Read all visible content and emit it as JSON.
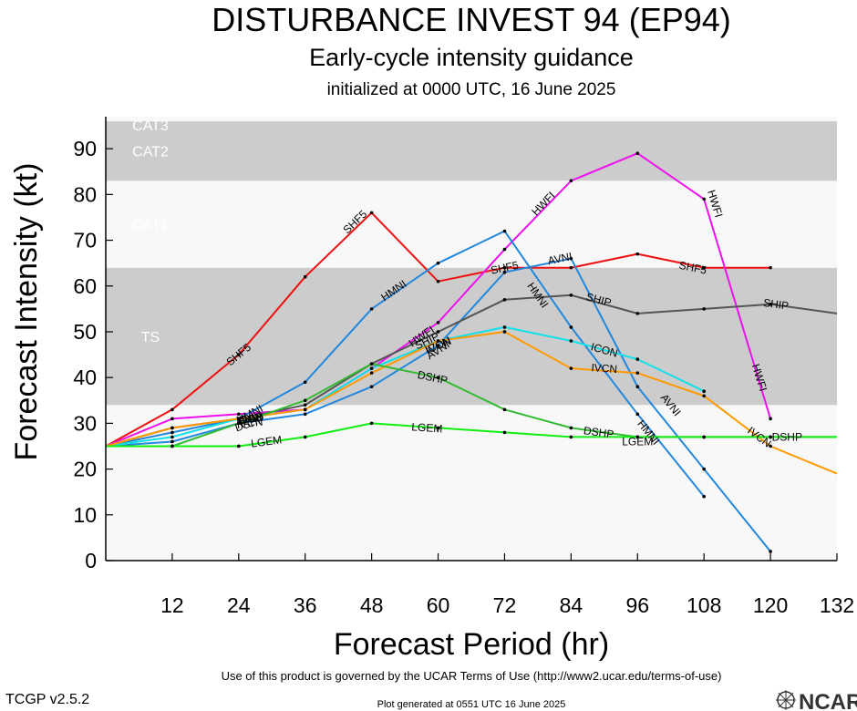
{
  "header": {
    "title": "DISTURBANCE INVEST 94 (EP94)",
    "subtitle": "Early-cycle intensity guidance",
    "initialized": "initialized at 0000 UTC, 16 June 2025"
  },
  "footer": {
    "terms": "Use of this product is governed by the UCAR Terms of Use (http://www2.ucar.edu/terms-of-use)",
    "generated": "Plot generated at 0551 UTC   16 June 2025",
    "version": "TCGP v2.5.2",
    "logo_text": "NCAR"
  },
  "chart_data": {
    "type": "line",
    "xlabel": "Forecast Period (hr)",
    "ylabel": "Forecast Intensity (kt)",
    "xlim": [
      0,
      132
    ],
    "ylim": [
      0,
      97
    ],
    "xticks": [
      12,
      24,
      36,
      48,
      60,
      72,
      84,
      96,
      108,
      120,
      132
    ],
    "yticks": [
      0,
      10,
      20,
      30,
      40,
      50,
      60,
      70,
      80,
      90
    ],
    "grid": false,
    "bands": [
      {
        "label": "TS",
        "from": 34,
        "to": 64,
        "color": "#cccccc"
      },
      {
        "label": "CAT1",
        "from": 64,
        "to": 83,
        "color": "#f8f8f8"
      },
      {
        "label": "CAT2",
        "from": 83,
        "to": 96,
        "color": "#cccccc"
      },
      {
        "label": "CAT3",
        "from": 96,
        "to": 113,
        "color": "#f8f8f8"
      }
    ],
    "series": [
      {
        "name": "SHF5",
        "color": "#ee1111",
        "x": [
          0,
          12,
          24,
          36,
          48,
          60,
          72,
          84,
          96,
          108,
          120
        ],
        "y": [
          25,
          33,
          45,
          62,
          76,
          61,
          64,
          64,
          67,
          64,
          64
        ],
        "labels": [
          {
            "x": 24,
            "y": 45
          },
          {
            "x": 45,
            "y": 74
          },
          {
            "x": 72,
            "y": 64
          },
          {
            "x": 106,
            "y": 64
          }
        ]
      },
      {
        "name": "HWFI",
        "color": "#ee11ee",
        "x": [
          0,
          12,
          24,
          36,
          48,
          60,
          72,
          84,
          96,
          108,
          120
        ],
        "y": [
          25,
          31,
          32,
          33,
          42,
          52,
          68,
          83,
          89,
          79,
          31
        ],
        "labels": [
          {
            "x": 57,
            "y": 49
          },
          {
            "x": 79,
            "y": 78
          },
          {
            "x": 110,
            "y": 78
          },
          {
            "x": 118,
            "y": 40
          }
        ]
      },
      {
        "name": "HMNI",
        "color": "#2288dd",
        "x": [
          0,
          12,
          24,
          36,
          48,
          60,
          72,
          84,
          96,
          108
        ],
        "y": [
          25,
          28,
          31,
          39,
          55,
          65,
          72,
          51,
          32,
          14
        ],
        "labels": [
          {
            "x": 26,
            "y": 32
          },
          {
            "x": 52,
            "y": 59
          },
          {
            "x": 78,
            "y": 58
          },
          {
            "x": 98,
            "y": 28
          }
        ]
      },
      {
        "name": "AVNI",
        "color": "#2288dd",
        "x": [
          0,
          12,
          24,
          36,
          48,
          60,
          72,
          84,
          96,
          108,
          120
        ],
        "y": [
          25,
          26,
          30,
          32,
          38,
          47,
          63,
          66,
          38,
          20,
          2
        ],
        "labels": [
          {
            "x": 26,
            "y": 31
          },
          {
            "x": 60,
            "y": 46
          },
          {
            "x": 82,
            "y": 66
          },
          {
            "x": 102,
            "y": 34
          }
        ]
      },
      {
        "name": "SHIP",
        "color": "#555555",
        "x": [
          0,
          12,
          24,
          36,
          48,
          60,
          72,
          84,
          96,
          108,
          120,
          132
        ],
        "y": [
          25,
          29,
          31,
          34,
          43,
          50,
          57,
          58,
          54,
          55,
          56,
          54
        ],
        "labels": [
          {
            "x": 26,
            "y": 31
          },
          {
            "x": 58,
            "y": 48
          },
          {
            "x": 89,
            "y": 57
          },
          {
            "x": 121,
            "y": 56
          }
        ]
      },
      {
        "name": "ICON",
        "color": "#11e0e8",
        "x": [
          0,
          12,
          24,
          36,
          48,
          60,
          72,
          84,
          96,
          108
        ],
        "y": [
          25,
          27,
          31,
          33,
          42,
          48,
          51,
          48,
          44,
          37
        ],
        "labels": [
          {
            "x": 26,
            "y": 31
          },
          {
            "x": 60,
            "y": 47
          },
          {
            "x": 90,
            "y": 46
          }
        ]
      },
      {
        "name": "IVCN",
        "color": "#ff9900",
        "x": [
          0,
          12,
          24,
          36,
          48,
          60,
          72,
          84,
          96,
          108,
          120,
          132
        ],
        "y": [
          25,
          29,
          31,
          33,
          41,
          48,
          50,
          42,
          41,
          36,
          25,
          19
        ],
        "labels": [
          {
            "x": 26,
            "y": 30
          },
          {
            "x": 60,
            "y": 47
          },
          {
            "x": 90,
            "y": 42
          },
          {
            "x": 118,
            "y": 27
          }
        ]
      },
      {
        "name": "DSHP",
        "color": "#33bb33",
        "x": [
          0,
          12,
          24,
          36,
          48,
          60,
          72,
          84,
          96,
          108,
          120,
          132
        ],
        "y": [
          25,
          25,
          30,
          35,
          43,
          40,
          33,
          29,
          27,
          27,
          27,
          27
        ],
        "labels": [
          {
            "x": 26,
            "y": 30
          },
          {
            "x": 59,
            "y": 40
          },
          {
            "x": 89,
            "y": 28
          },
          {
            "x": 123,
            "y": 27
          }
        ]
      },
      {
        "name": "LGEM",
        "color": "#11ee11",
        "x": [
          0,
          12,
          24,
          36,
          48,
          60,
          72,
          84,
          96,
          108,
          120,
          132
        ],
        "y": [
          25,
          25,
          25,
          27,
          30,
          29,
          28,
          27,
          27,
          27,
          27,
          27
        ],
        "labels": [
          {
            "x": 29,
            "y": 26
          },
          {
            "x": 58,
            "y": 29
          },
          {
            "x": 96,
            "y": 26
          }
        ]
      }
    ]
  }
}
